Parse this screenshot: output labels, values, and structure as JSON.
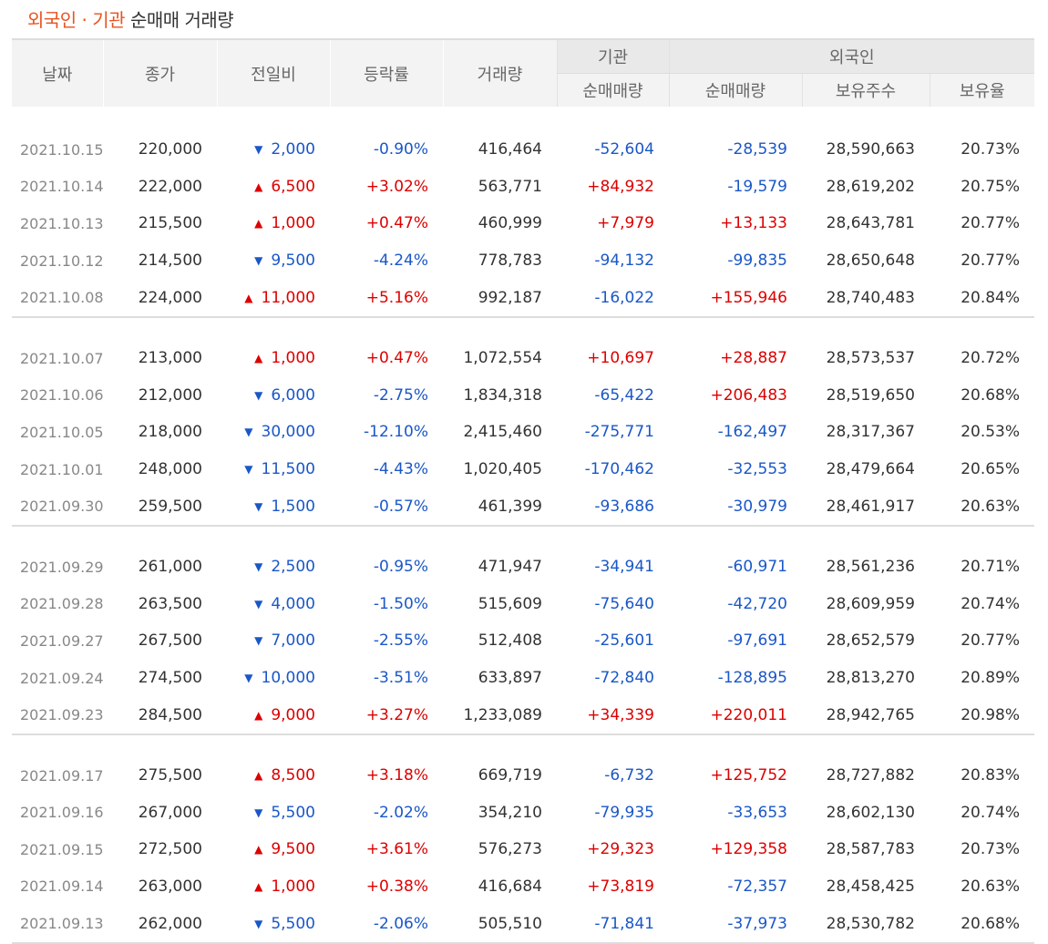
{
  "title": {
    "part1": "외국인 · 기관",
    "part2": "순매매 거래량"
  },
  "headers": {
    "date": "날짜",
    "close": "종가",
    "change": "전일비",
    "rate": "등락률",
    "volume": "거래량",
    "inst_group": "기관",
    "foreign_group": "외국인",
    "inst_net": "순매매량",
    "foreign_net": "순매매량",
    "foreign_shares": "보유주수",
    "foreign_ratio": "보유율"
  },
  "colors": {
    "up": "#dd0000",
    "down": "#1a57c8",
    "accent": "#e8531f"
  },
  "icons": {
    "up": "up-triangle-icon",
    "down": "down-triangle-icon"
  },
  "groups": [
    [
      {
        "date": "2021.10.15",
        "close": "220,000",
        "dir": "down",
        "change": "2,000",
        "rate": "-0.90%",
        "volume": "416,464",
        "inst": "-52,604",
        "foreign": "-28,539",
        "shares": "28,590,663",
        "ratio": "20.73%"
      },
      {
        "date": "2021.10.14",
        "close": "222,000",
        "dir": "up",
        "change": "6,500",
        "rate": "+3.02%",
        "volume": "563,771",
        "inst": "+84,932",
        "foreign": "-19,579",
        "shares": "28,619,202",
        "ratio": "20.75%"
      },
      {
        "date": "2021.10.13",
        "close": "215,500",
        "dir": "up",
        "change": "1,000",
        "rate": "+0.47%",
        "volume": "460,999",
        "inst": "+7,979",
        "foreign": "+13,133",
        "shares": "28,643,781",
        "ratio": "20.77%"
      },
      {
        "date": "2021.10.12",
        "close": "214,500",
        "dir": "down",
        "change": "9,500",
        "rate": "-4.24%",
        "volume": "778,783",
        "inst": "-94,132",
        "foreign": "-99,835",
        "shares": "28,650,648",
        "ratio": "20.77%"
      },
      {
        "date": "2021.10.08",
        "close": "224,000",
        "dir": "up",
        "change": "11,000",
        "rate": "+5.16%",
        "volume": "992,187",
        "inst": "-16,022",
        "foreign": "+155,946",
        "shares": "28,740,483",
        "ratio": "20.84%"
      }
    ],
    [
      {
        "date": "2021.10.07",
        "close": "213,000",
        "dir": "up",
        "change": "1,000",
        "rate": "+0.47%",
        "volume": "1,072,554",
        "inst": "+10,697",
        "foreign": "+28,887",
        "shares": "28,573,537",
        "ratio": "20.72%"
      },
      {
        "date": "2021.10.06",
        "close": "212,000",
        "dir": "down",
        "change": "6,000",
        "rate": "-2.75%",
        "volume": "1,834,318",
        "inst": "-65,422",
        "foreign": "+206,483",
        "shares": "28,519,650",
        "ratio": "20.68%"
      },
      {
        "date": "2021.10.05",
        "close": "218,000",
        "dir": "down",
        "change": "30,000",
        "rate": "-12.10%",
        "volume": "2,415,460",
        "inst": "-275,771",
        "foreign": "-162,497",
        "shares": "28,317,367",
        "ratio": "20.53%"
      },
      {
        "date": "2021.10.01",
        "close": "248,000",
        "dir": "down",
        "change": "11,500",
        "rate": "-4.43%",
        "volume": "1,020,405",
        "inst": "-170,462",
        "foreign": "-32,553",
        "shares": "28,479,664",
        "ratio": "20.65%"
      },
      {
        "date": "2021.09.30",
        "close": "259,500",
        "dir": "down",
        "change": "1,500",
        "rate": "-0.57%",
        "volume": "461,399",
        "inst": "-93,686",
        "foreign": "-30,979",
        "shares": "28,461,917",
        "ratio": "20.63%"
      }
    ],
    [
      {
        "date": "2021.09.29",
        "close": "261,000",
        "dir": "down",
        "change": "2,500",
        "rate": "-0.95%",
        "volume": "471,947",
        "inst": "-34,941",
        "foreign": "-60,971",
        "shares": "28,561,236",
        "ratio": "20.71%"
      },
      {
        "date": "2021.09.28",
        "close": "263,500",
        "dir": "down",
        "change": "4,000",
        "rate": "-1.50%",
        "volume": "515,609",
        "inst": "-75,640",
        "foreign": "-42,720",
        "shares": "28,609,959",
        "ratio": "20.74%"
      },
      {
        "date": "2021.09.27",
        "close": "267,500",
        "dir": "down",
        "change": "7,000",
        "rate": "-2.55%",
        "volume": "512,408",
        "inst": "-25,601",
        "foreign": "-97,691",
        "shares": "28,652,579",
        "ratio": "20.77%"
      },
      {
        "date": "2021.09.24",
        "close": "274,500",
        "dir": "down",
        "change": "10,000",
        "rate": "-3.51%",
        "volume": "633,897",
        "inst": "-72,840",
        "foreign": "-128,895",
        "shares": "28,813,270",
        "ratio": "20.89%"
      },
      {
        "date": "2021.09.23",
        "close": "284,500",
        "dir": "up",
        "change": "9,000",
        "rate": "+3.27%",
        "volume": "1,233,089",
        "inst": "+34,339",
        "foreign": "+220,011",
        "shares": "28,942,765",
        "ratio": "20.98%"
      }
    ],
    [
      {
        "date": "2021.09.17",
        "close": "275,500",
        "dir": "up",
        "change": "8,500",
        "rate": "+3.18%",
        "volume": "669,719",
        "inst": "-6,732",
        "foreign": "+125,752",
        "shares": "28,727,882",
        "ratio": "20.83%"
      },
      {
        "date": "2021.09.16",
        "close": "267,000",
        "dir": "down",
        "change": "5,500",
        "rate": "-2.02%",
        "volume": "354,210",
        "inst": "-79,935",
        "foreign": "-33,653",
        "shares": "28,602,130",
        "ratio": "20.74%"
      },
      {
        "date": "2021.09.15",
        "close": "272,500",
        "dir": "up",
        "change": "9,500",
        "rate": "+3.61%",
        "volume": "576,273",
        "inst": "+29,323",
        "foreign": "+129,358",
        "shares": "28,587,783",
        "ratio": "20.73%"
      },
      {
        "date": "2021.09.14",
        "close": "263,000",
        "dir": "up",
        "change": "1,000",
        "rate": "+0.38%",
        "volume": "416,684",
        "inst": "+73,819",
        "foreign": "-72,357",
        "shares": "28,458,425",
        "ratio": "20.63%"
      },
      {
        "date": "2021.09.13",
        "close": "262,000",
        "dir": "down",
        "change": "5,500",
        "rate": "-2.06%",
        "volume": "505,510",
        "inst": "-71,841",
        "foreign": "-37,973",
        "shares": "28,530,782",
        "ratio": "20.68%"
      }
    ]
  ]
}
